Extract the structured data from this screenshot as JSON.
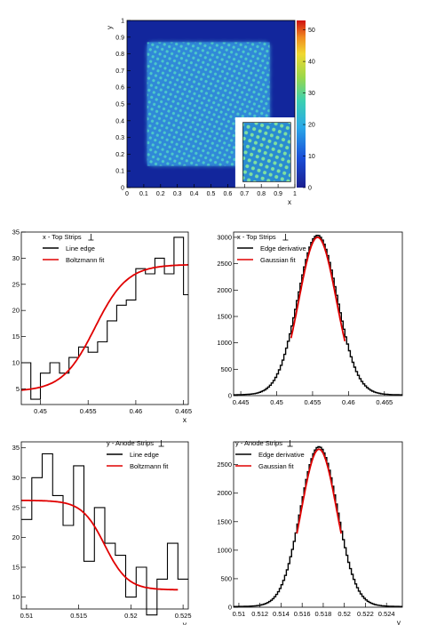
{
  "chart_data": [
    {
      "type": "heatmap",
      "xlabel": "x",
      "ylabel": "y",
      "xlim": [
        0,
        1
      ],
      "ylim": [
        0,
        1
      ],
      "xticks": [
        "0",
        "0.1",
        "0.2",
        "0.3",
        "0.4",
        "0.5",
        "0.6",
        "0.7",
        "0.8",
        "0.9",
        "1"
      ],
      "yticks": [
        "0",
        "0.1",
        "0.2",
        "0.3",
        "0.4",
        "0.5",
        "0.6",
        "0.7",
        "0.8",
        "0.9",
        "1"
      ],
      "colorbar": {
        "range": [
          0,
          50
        ],
        "ticks": [
          "0",
          "10",
          "20",
          "30",
          "40",
          "50"
        ]
      },
      "colors": {
        "background": "#12269c",
        "square": "#3a9be0",
        "inset": "#4cb8d8"
      },
      "has_inset": true
    },
    {
      "type": "step+line",
      "legend_title": "x - Top Strips",
      "xlabel": "x",
      "xlim": [
        0.448,
        0.4655
      ],
      "ylim": [
        2,
        35
      ],
      "xticks": [
        "0.45",
        "0.455",
        "0.46",
        "0.465"
      ],
      "yticks": [
        "5",
        "10",
        "15",
        "20",
        "25",
        "30",
        "35"
      ],
      "series": [
        {
          "name": "Line edge",
          "style": "step",
          "color": "#000000",
          "x": [
            0.448,
            0.449,
            0.45,
            0.451,
            0.452,
            0.453,
            0.454,
            0.455,
            0.456,
            0.457,
            0.458,
            0.459,
            0.46,
            0.461,
            0.462,
            0.463,
            0.464,
            0.465
          ],
          "values": [
            10,
            3,
            8,
            10,
            8,
            11,
            13,
            12,
            14,
            18,
            21,
            22,
            28,
            27,
            30,
            27,
            34,
            23
          ]
        },
        {
          "name": "Boltzmann fit",
          "style": "line",
          "color": "#e00000",
          "model": {
            "A1": 4.5,
            "A2": 28.8,
            "x0": 0.4557,
            "dx": 0.0017
          }
        }
      ]
    },
    {
      "type": "step+line",
      "legend_title": "x - Top Strips",
      "xlabel": "",
      "xlim": [
        0.444,
        0.4675
      ],
      "ylim": [
        0,
        3100
      ],
      "xticks": [
        "0.445",
        "0.45",
        "0.455",
        "0.46",
        "0.465"
      ],
      "yticks": [
        "0",
        "500",
        "1000",
        "1500",
        "2000",
        "2500",
        "3000"
      ],
      "series": [
        {
          "name": "Edge derivative",
          "style": "step",
          "color": "#000000",
          "model": {
            "amp": 2980,
            "mu": 0.4557,
            "sigma": 0.00275,
            "bins": 94
          }
        },
        {
          "name": "Gaussian fit",
          "style": "line",
          "color": "#e00000",
          "model": {
            "amp": 3000,
            "mu": 0.4557,
            "sigma": 0.0026,
            "range": [
              0.452,
              0.4595
            ]
          }
        }
      ]
    },
    {
      "type": "step+line",
      "legend_title": "y - Anode Strips",
      "xlabel": "y",
      "xlim": [
        0.5095,
        0.5255
      ],
      "ylim": [
        8,
        36
      ],
      "xticks": [
        "0.51",
        "0.515",
        "0.52",
        "0.525"
      ],
      "yticks": [
        "10",
        "15",
        "20",
        "25",
        "30",
        "35"
      ],
      "series": [
        {
          "name": "Line edge",
          "style": "step",
          "color": "#000000",
          "x": [
            0.5095,
            0.5105,
            0.5115,
            0.5125,
            0.5135,
            0.5145,
            0.5155,
            0.5165,
            0.5175,
            0.5185,
            0.5195,
            0.5205,
            0.5215,
            0.5225,
            0.5235,
            0.5245
          ],
          "values": [
            23,
            30,
            34,
            27,
            22,
            32,
            16,
            25,
            19,
            17,
            10,
            15,
            7,
            13,
            19,
            13
          ]
        },
        {
          "name": "Boltzmann fit",
          "style": "line",
          "color": "#e00000",
          "model": {
            "A1": 26.2,
            "A2": 11.2,
            "x0": 0.5175,
            "dx": 0.0011,
            "range": [
              0.5095,
              0.5245
            ]
          }
        }
      ]
    },
    {
      "type": "step+line",
      "legend_title": "y - Anode Strips",
      "xlabel": "y",
      "xlim": [
        0.5095,
        0.5255
      ],
      "ylim": [
        0,
        2900
      ],
      "xticks": [
        "0.51",
        "0.512",
        "0.514",
        "0.516",
        "0.518",
        "0.52",
        "0.522",
        "0.524"
      ],
      "yticks": [
        "0",
        "500",
        "1000",
        "1500",
        "2000",
        "2500"
      ],
      "series": [
        {
          "name": "Edge derivative",
          "style": "step",
          "color": "#000000",
          "model": {
            "amp": 2760,
            "mu": 0.5176,
            "sigma": 0.00175,
            "bins": 96
          }
        },
        {
          "name": "Gaussian fit",
          "style": "line",
          "color": "#e00000",
          "model": {
            "amp": 2770,
            "mu": 0.5176,
            "sigma": 0.0017,
            "range": [
              0.5155,
              0.5197
            ]
          }
        }
      ]
    }
  ]
}
